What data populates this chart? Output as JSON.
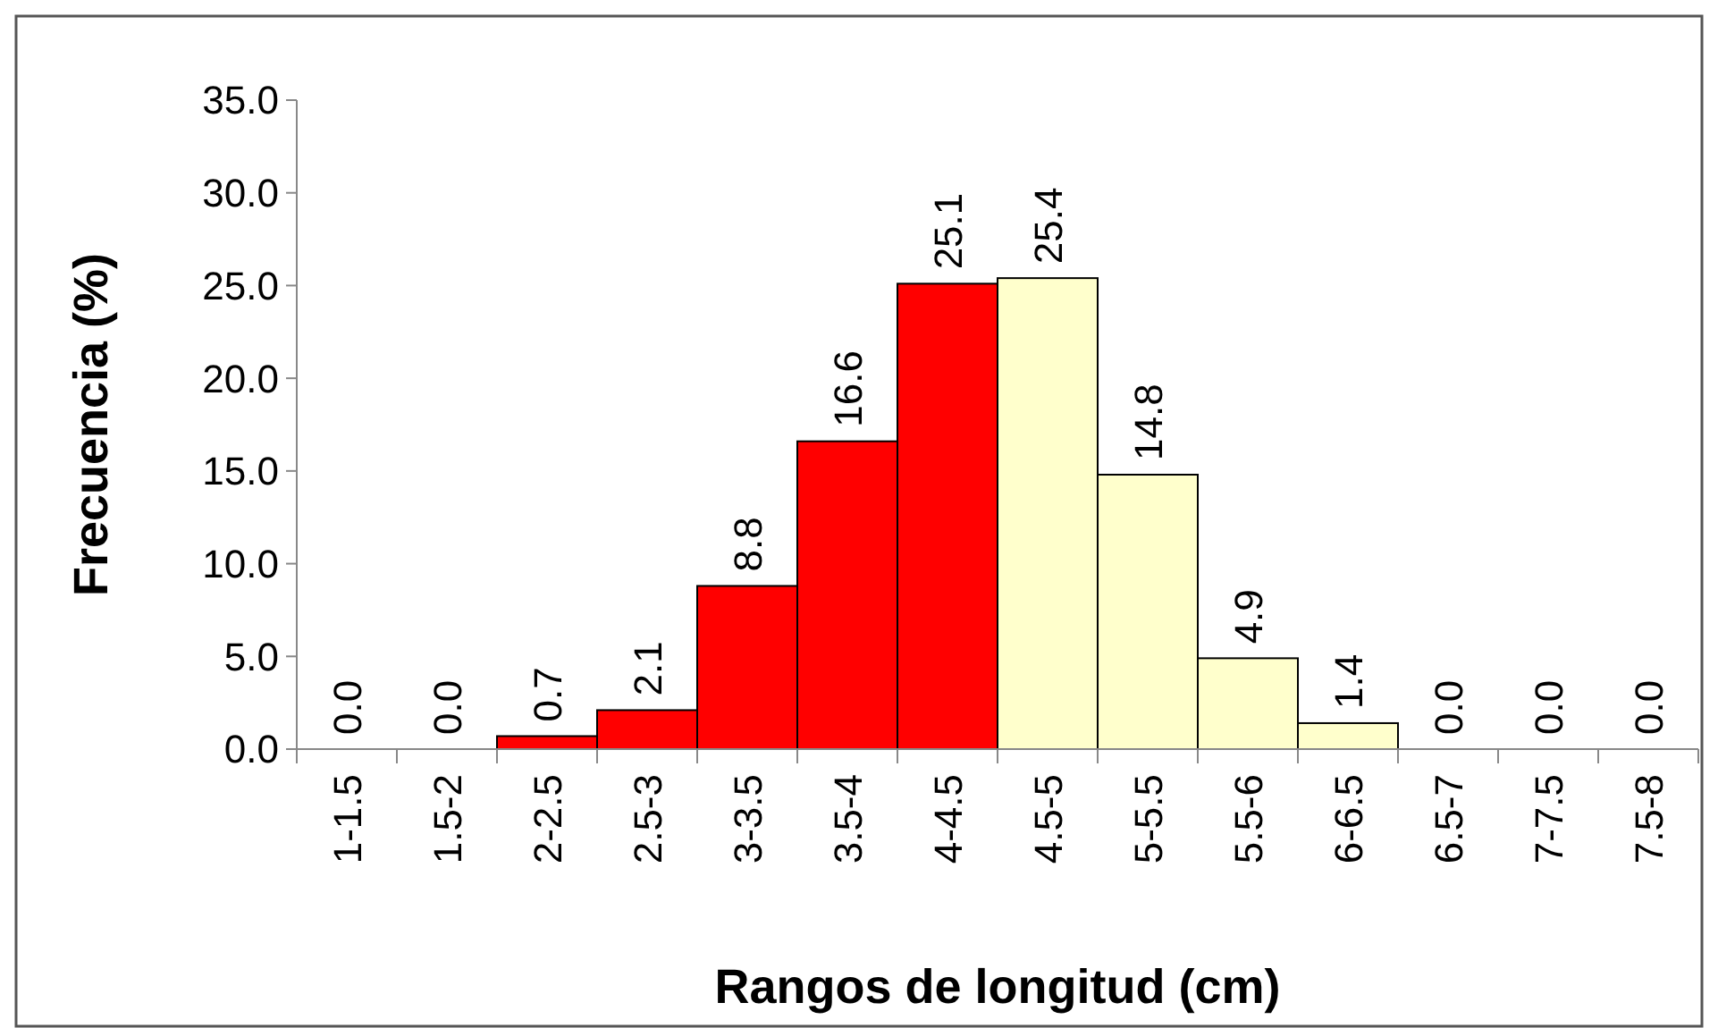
{
  "chart_data": {
    "type": "bar",
    "xlabel": "Rangos de longitud (cm)",
    "ylabel": "Frecuencia (%)",
    "categories": [
      "1-1.5",
      "1.5-2",
      "2-2.5",
      "2.5-3",
      "3-3.5",
      "3.5-4",
      "4-4.5",
      "4.5-5",
      "5-5.5",
      "5.5-6",
      "6-6.5",
      "6.5-7",
      "7-7.5",
      "7.5-8"
    ],
    "values": [
      0,
      0,
      0.7,
      2.1,
      8.8,
      16.6,
      25.1,
      25.4,
      14.8,
      4.9,
      1.4,
      0,
      0,
      0
    ],
    "value_labels": [
      "0.0",
      "0.0",
      "0.7",
      "2.1",
      "8.8",
      "16.6",
      "25.1",
      "25.4",
      "14.8",
      "4.9",
      "1.4",
      "0.0",
      "0.0",
      "0.0"
    ],
    "colors": [
      "#ff0000",
      "#ff0000",
      "#ff0000",
      "#ff0000",
      "#ff0000",
      "#ff0000",
      "#ff0000",
      "#ffffcc",
      "#ffffcc",
      "#ffffcc",
      "#ffffcc",
      "#ffffcc",
      "#ffffcc",
      "#ffffcc"
    ],
    "ylim": [
      0,
      35
    ],
    "yticks": [
      {
        "value": 0,
        "label": "0.0"
      },
      {
        "value": 5,
        "label": "5.0"
      },
      {
        "value": 10,
        "label": "10.0"
      },
      {
        "value": 15,
        "label": "15.0"
      },
      {
        "value": 20,
        "label": "20.0"
      },
      {
        "value": 25,
        "label": "25.0"
      },
      {
        "value": 30,
        "label": "30.0"
      },
      {
        "value": 35,
        "label": "35.0"
      }
    ],
    "grid": false
  }
}
